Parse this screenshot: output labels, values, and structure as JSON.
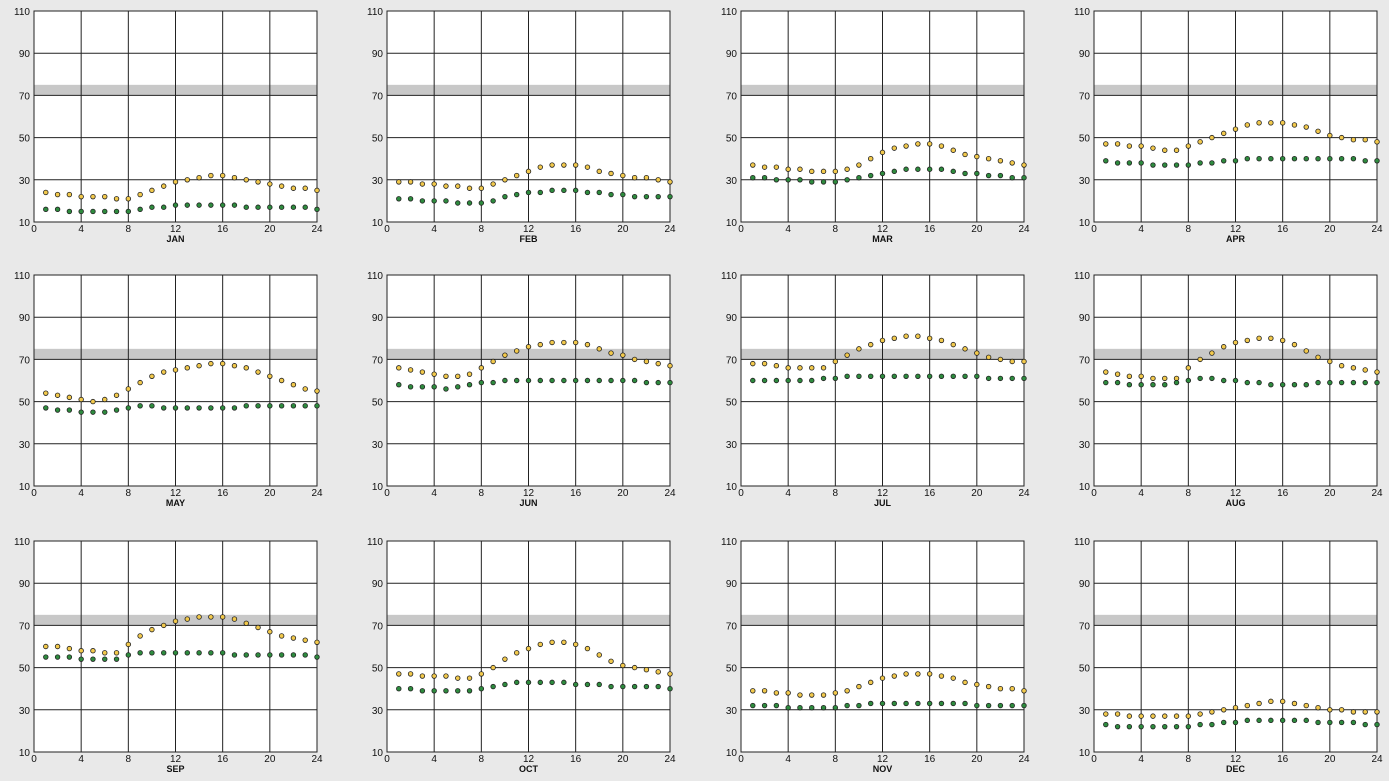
{
  "colors": {
    "page_background": "#e9e9e9",
    "plot_background": "#ffffff",
    "grid": "#222222",
    "comfort_band": "#c8c8c8",
    "dry_bulb_marker_fill": "#f2c94c",
    "dew_point_marker_fill": "#2e8b3e",
    "marker_stroke": "#222222"
  },
  "x_ticks": [
    "0",
    "4",
    "8",
    "12",
    "16",
    "20",
    "24"
  ],
  "y_ticks": [
    "10",
    "30",
    "50",
    "70",
    "90",
    "110"
  ],
  "chart_data": [
    {
      "type": "scatter",
      "title": "JAN",
      "xlim": [
        0,
        24
      ],
      "ylim": [
        10,
        110
      ],
      "grid": true,
      "band": [
        70,
        75
      ],
      "x": [
        1,
        2,
        3,
        4,
        5,
        6,
        7,
        8,
        9,
        10,
        11,
        12,
        13,
        14,
        15,
        16,
        17,
        18,
        19,
        20,
        21,
        22,
        23,
        24
      ],
      "series": [
        {
          "values": [
            24,
            23,
            23,
            22,
            22,
            22,
            21,
            21,
            23,
            25,
            27,
            29,
            30,
            31,
            32,
            32,
            31,
            30,
            29,
            28,
            27,
            26,
            26,
            25
          ]
        },
        {
          "values": [
            16,
            16,
            15,
            15,
            15,
            15,
            15,
            15,
            16,
            17,
            17,
            18,
            18,
            18,
            18,
            18,
            18,
            17,
            17,
            17,
            17,
            17,
            17,
            16
          ]
        }
      ]
    },
    {
      "type": "scatter",
      "title": "FEB",
      "xlim": [
        0,
        24
      ],
      "ylim": [
        10,
        110
      ],
      "grid": true,
      "band": [
        70,
        75
      ],
      "x": [
        1,
        2,
        3,
        4,
        5,
        6,
        7,
        8,
        9,
        10,
        11,
        12,
        13,
        14,
        15,
        16,
        17,
        18,
        19,
        20,
        21,
        22,
        23,
        24
      ],
      "series": [
        {
          "values": [
            29,
            29,
            28,
            28,
            27,
            27,
            26,
            26,
            28,
            30,
            32,
            34,
            36,
            37,
            37,
            37,
            36,
            34,
            33,
            32,
            31,
            31,
            30,
            29
          ]
        },
        {
          "values": [
            21,
            21,
            20,
            20,
            20,
            19,
            19,
            19,
            20,
            22,
            23,
            24,
            24,
            25,
            25,
            25,
            24,
            24,
            23,
            23,
            22,
            22,
            22,
            22
          ]
        }
      ]
    },
    {
      "type": "scatter",
      "title": "MAR",
      "xlim": [
        0,
        24
      ],
      "ylim": [
        10,
        110
      ],
      "grid": true,
      "band": [
        70,
        75
      ],
      "x": [
        1,
        2,
        3,
        4,
        5,
        6,
        7,
        8,
        9,
        10,
        11,
        12,
        13,
        14,
        15,
        16,
        17,
        18,
        19,
        20,
        21,
        22,
        23,
        24
      ],
      "series": [
        {
          "values": [
            37,
            36,
            36,
            35,
            35,
            34,
            34,
            34,
            35,
            37,
            40,
            43,
            45,
            46,
            47,
            47,
            46,
            44,
            42,
            41,
            40,
            39,
            38,
            37
          ]
        },
        {
          "values": [
            31,
            31,
            30,
            30,
            30,
            29,
            29,
            29,
            30,
            31,
            32,
            33,
            34,
            35,
            35,
            35,
            35,
            34,
            33,
            33,
            32,
            32,
            31,
            31
          ]
        }
      ]
    },
    {
      "type": "scatter",
      "title": "APR",
      "xlim": [
        0,
        24
      ],
      "ylim": [
        10,
        110
      ],
      "grid": true,
      "band": [
        70,
        75
      ],
      "x": [
        1,
        2,
        3,
        4,
        5,
        6,
        7,
        8,
        9,
        10,
        11,
        12,
        13,
        14,
        15,
        16,
        17,
        18,
        19,
        20,
        21,
        22,
        23,
        24
      ],
      "series": [
        {
          "values": [
            47,
            47,
            46,
            46,
            45,
            44,
            44,
            46,
            48,
            50,
            52,
            54,
            56,
            57,
            57,
            57,
            56,
            55,
            53,
            51,
            50,
            49,
            49,
            48
          ]
        },
        {
          "values": [
            39,
            38,
            38,
            38,
            37,
            37,
            37,
            37,
            38,
            38,
            39,
            39,
            40,
            40,
            40,
            40,
            40,
            40,
            40,
            40,
            40,
            40,
            39,
            39
          ]
        }
      ]
    },
    {
      "type": "scatter",
      "title": "MAY",
      "xlim": [
        0,
        24
      ],
      "ylim": [
        10,
        110
      ],
      "grid": true,
      "band": [
        70,
        75
      ],
      "x": [
        1,
        2,
        3,
        4,
        5,
        6,
        7,
        8,
        9,
        10,
        11,
        12,
        13,
        14,
        15,
        16,
        17,
        18,
        19,
        20,
        21,
        22,
        23,
        24
      ],
      "series": [
        {
          "values": [
            54,
            53,
            52,
            51,
            50,
            51,
            53,
            56,
            59,
            62,
            64,
            65,
            66,
            67,
            68,
            68,
            67,
            66,
            64,
            62,
            60,
            58,
            56,
            55
          ]
        },
        {
          "values": [
            47,
            46,
            46,
            45,
            45,
            45,
            46,
            47,
            48,
            48,
            47,
            47,
            47,
            47,
            47,
            47,
            47,
            48,
            48,
            48,
            48,
            48,
            48,
            48
          ]
        }
      ]
    },
    {
      "type": "scatter",
      "title": "JUN",
      "xlim": [
        0,
        24
      ],
      "ylim": [
        10,
        110
      ],
      "grid": true,
      "band": [
        70,
        75
      ],
      "x": [
        1,
        2,
        3,
        4,
        5,
        6,
        7,
        8,
        9,
        10,
        11,
        12,
        13,
        14,
        15,
        16,
        17,
        18,
        19,
        20,
        21,
        22,
        23,
        24
      ],
      "series": [
        {
          "values": [
            66,
            65,
            64,
            63,
            62,
            62,
            63,
            66,
            69,
            72,
            74,
            76,
            77,
            78,
            78,
            78,
            77,
            75,
            73,
            72,
            70,
            69,
            68,
            67
          ]
        },
        {
          "values": [
            58,
            57,
            57,
            57,
            56,
            57,
            58,
            59,
            59,
            60,
            60,
            60,
            60,
            60,
            60,
            60,
            60,
            60,
            60,
            60,
            60,
            59,
            59,
            59
          ]
        }
      ]
    },
    {
      "type": "scatter",
      "title": "JUL",
      "xlim": [
        0,
        24
      ],
      "ylim": [
        10,
        110
      ],
      "grid": true,
      "band": [
        70,
        75
      ],
      "x": [
        1,
        2,
        3,
        4,
        5,
        6,
        7,
        8,
        9,
        10,
        11,
        12,
        13,
        14,
        15,
        16,
        17,
        18,
        19,
        20,
        21,
        22,
        23,
        24
      ],
      "series": [
        {
          "values": [
            68,
            68,
            67,
            66,
            66,
            66,
            66,
            69,
            72,
            75,
            77,
            79,
            80,
            81,
            81,
            80,
            79,
            77,
            75,
            73,
            71,
            70,
            69,
            69
          ]
        },
        {
          "values": [
            60,
            60,
            60,
            60,
            60,
            60,
            61,
            61,
            62,
            62,
            62,
            62,
            62,
            62,
            62,
            62,
            62,
            62,
            62,
            62,
            61,
            61,
            61,
            61
          ]
        }
      ]
    },
    {
      "type": "scatter",
      "title": "AUG",
      "xlim": [
        0,
        24
      ],
      "ylim": [
        10,
        110
      ],
      "grid": true,
      "band": [
        70,
        75
      ],
      "x": [
        1,
        2,
        3,
        4,
        5,
        6,
        7,
        8,
        9,
        10,
        11,
        12,
        13,
        14,
        15,
        16,
        17,
        18,
        19,
        20,
        21,
        22,
        23,
        24
      ],
      "series": [
        {
          "values": [
            64,
            63,
            62,
            62,
            61,
            61,
            61,
            66,
            70,
            73,
            76,
            78,
            79,
            80,
            80,
            79,
            77,
            74,
            71,
            69,
            67,
            66,
            65,
            64
          ]
        },
        {
          "values": [
            59,
            59,
            58,
            58,
            58,
            58,
            59,
            60,
            61,
            61,
            60,
            60,
            59,
            59,
            58,
            58,
            58,
            58,
            59,
            59,
            59,
            59,
            59,
            59
          ]
        }
      ]
    },
    {
      "type": "scatter",
      "title": "SEP",
      "xlim": [
        0,
        24
      ],
      "ylim": [
        10,
        110
      ],
      "grid": true,
      "band": [
        70,
        75
      ],
      "x": [
        1,
        2,
        3,
        4,
        5,
        6,
        7,
        8,
        9,
        10,
        11,
        12,
        13,
        14,
        15,
        16,
        17,
        18,
        19,
        20,
        21,
        22,
        23,
        24
      ],
      "series": [
        {
          "values": [
            60,
            60,
            59,
            58,
            58,
            57,
            57,
            61,
            65,
            68,
            70,
            72,
            73,
            74,
            74,
            74,
            73,
            71,
            69,
            67,
            65,
            64,
            63,
            62
          ]
        },
        {
          "values": [
            55,
            55,
            55,
            54,
            54,
            54,
            54,
            56,
            57,
            57,
            57,
            57,
            57,
            57,
            57,
            57,
            56,
            56,
            56,
            56,
            56,
            56,
            56,
            55
          ]
        }
      ]
    },
    {
      "type": "scatter",
      "title": "OCT",
      "xlim": [
        0,
        24
      ],
      "ylim": [
        10,
        110
      ],
      "grid": true,
      "band": [
        70,
        75
      ],
      "x": [
        1,
        2,
        3,
        4,
        5,
        6,
        7,
        8,
        9,
        10,
        11,
        12,
        13,
        14,
        15,
        16,
        17,
        18,
        19,
        20,
        21,
        22,
        23,
        24
      ],
      "series": [
        {
          "values": [
            47,
            47,
            46,
            46,
            46,
            45,
            45,
            47,
            50,
            54,
            57,
            59,
            61,
            62,
            62,
            61,
            59,
            56,
            53,
            51,
            50,
            49,
            48,
            47
          ]
        },
        {
          "values": [
            40,
            40,
            39,
            39,
            39,
            39,
            39,
            40,
            41,
            42,
            43,
            43,
            43,
            43,
            43,
            42,
            42,
            42,
            41,
            41,
            41,
            41,
            41,
            40
          ]
        }
      ]
    },
    {
      "type": "scatter",
      "title": "NOV",
      "xlim": [
        0,
        24
      ],
      "ylim": [
        10,
        110
      ],
      "grid": true,
      "band": [
        70,
        75
      ],
      "x": [
        1,
        2,
        3,
        4,
        5,
        6,
        7,
        8,
        9,
        10,
        11,
        12,
        13,
        14,
        15,
        16,
        17,
        18,
        19,
        20,
        21,
        22,
        23,
        24
      ],
      "series": [
        {
          "values": [
            39,
            39,
            38,
            38,
            37,
            37,
            37,
            38,
            39,
            41,
            43,
            45,
            46,
            47,
            47,
            47,
            46,
            45,
            43,
            42,
            41,
            40,
            40,
            39
          ]
        },
        {
          "values": [
            32,
            32,
            32,
            31,
            31,
            31,
            31,
            31,
            32,
            32,
            33,
            33,
            33,
            33,
            33,
            33,
            33,
            33,
            33,
            32,
            32,
            32,
            32,
            32
          ]
        }
      ]
    },
    {
      "type": "scatter",
      "title": "DEC",
      "xlim": [
        0,
        24
      ],
      "ylim": [
        10,
        110
      ],
      "grid": true,
      "band": [
        70,
        75
      ],
      "x": [
        1,
        2,
        3,
        4,
        5,
        6,
        7,
        8,
        9,
        10,
        11,
        12,
        13,
        14,
        15,
        16,
        17,
        18,
        19,
        20,
        21,
        22,
        23,
        24
      ],
      "series": [
        {
          "values": [
            28,
            28,
            27,
            27,
            27,
            27,
            27,
            27,
            28,
            29,
            30,
            31,
            32,
            33,
            34,
            34,
            33,
            32,
            31,
            30,
            30,
            29,
            29,
            29
          ]
        },
        {
          "values": [
            23,
            22,
            22,
            22,
            22,
            22,
            22,
            22,
            23,
            23,
            24,
            24,
            25,
            25,
            25,
            25,
            25,
            25,
            24,
            24,
            24,
            24,
            23,
            23
          ]
        }
      ]
    }
  ]
}
